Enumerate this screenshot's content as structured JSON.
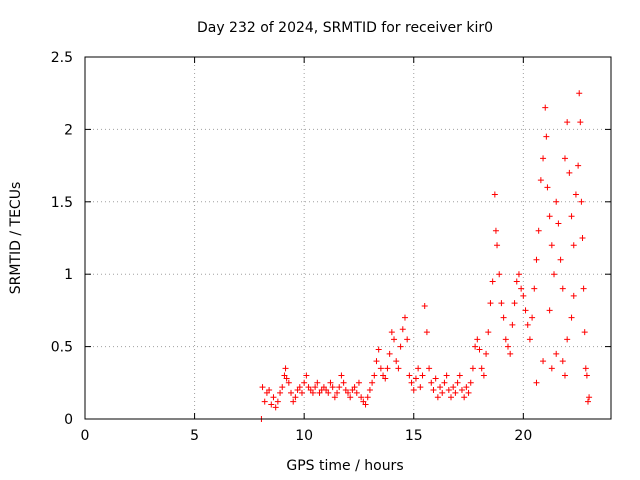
{
  "chart_data": {
    "type": "scatter",
    "title": "Day 232 of 2024, SRMTID for receiver kir0",
    "xlabel": "GPS time / hours",
    "ylabel": "SRMTID / TECUs",
    "xlim": [
      0,
      24
    ],
    "ylim": [
      0,
      2.5
    ],
    "xticks": [
      0,
      5,
      10,
      15,
      20
    ],
    "xtick_labels": [
      "0",
      "5",
      "10",
      "15",
      "20"
    ],
    "yticks": [
      0,
      0.5,
      1,
      1.5,
      2,
      2.5
    ],
    "ytick_labels": [
      "0",
      "0.5",
      "1",
      "1.5",
      "2",
      "2.5"
    ],
    "grid": true,
    "marker": "+",
    "series": [
      {
        "name": "kir0",
        "color": "#ff0000",
        "points": [
          [
            8.05,
            0.0
          ],
          [
            8.1,
            0.22
          ],
          [
            8.2,
            0.12
          ],
          [
            8.3,
            0.18
          ],
          [
            8.4,
            0.2
          ],
          [
            8.5,
            0.1
          ],
          [
            8.6,
            0.15
          ],
          [
            8.7,
            0.08
          ],
          [
            8.8,
            0.12
          ],
          [
            8.9,
            0.18
          ],
          [
            9.0,
            0.22
          ],
          [
            9.1,
            0.3
          ],
          [
            9.15,
            0.35
          ],
          [
            9.2,
            0.28
          ],
          [
            9.3,
            0.25
          ],
          [
            9.4,
            0.18
          ],
          [
            9.5,
            0.12
          ],
          [
            9.6,
            0.15
          ],
          [
            9.7,
            0.2
          ],
          [
            9.8,
            0.22
          ],
          [
            9.9,
            0.18
          ],
          [
            10.0,
            0.25
          ],
          [
            10.1,
            0.3
          ],
          [
            10.2,
            0.22
          ],
          [
            10.3,
            0.2
          ],
          [
            10.4,
            0.18
          ],
          [
            10.5,
            0.22
          ],
          [
            10.6,
            0.25
          ],
          [
            10.7,
            0.18
          ],
          [
            10.8,
            0.2
          ],
          [
            10.9,
            0.22
          ],
          [
            11.0,
            0.2
          ],
          [
            11.1,
            0.18
          ],
          [
            11.2,
            0.25
          ],
          [
            11.3,
            0.22
          ],
          [
            11.4,
            0.15
          ],
          [
            11.5,
            0.18
          ],
          [
            11.6,
            0.22
          ],
          [
            11.7,
            0.3
          ],
          [
            11.8,
            0.25
          ],
          [
            11.9,
            0.2
          ],
          [
            12.0,
            0.18
          ],
          [
            12.1,
            0.15
          ],
          [
            12.2,
            0.2
          ],
          [
            12.3,
            0.22
          ],
          [
            12.4,
            0.18
          ],
          [
            12.5,
            0.25
          ],
          [
            12.6,
            0.15
          ],
          [
            12.7,
            0.12
          ],
          [
            12.8,
            0.1
          ],
          [
            12.9,
            0.15
          ],
          [
            13.0,
            0.2
          ],
          [
            13.1,
            0.25
          ],
          [
            13.2,
            0.3
          ],
          [
            13.3,
            0.4
          ],
          [
            13.4,
            0.48
          ],
          [
            13.5,
            0.35
          ],
          [
            13.6,
            0.3
          ],
          [
            13.7,
            0.28
          ],
          [
            13.8,
            0.35
          ],
          [
            13.9,
            0.45
          ],
          [
            14.0,
            0.6
          ],
          [
            14.1,
            0.55
          ],
          [
            14.2,
            0.4
          ],
          [
            14.3,
            0.35
          ],
          [
            14.4,
            0.5
          ],
          [
            14.5,
            0.62
          ],
          [
            14.6,
            0.7
          ],
          [
            14.7,
            0.55
          ],
          [
            14.8,
            0.3
          ],
          [
            14.9,
            0.25
          ],
          [
            15.0,
            0.2
          ],
          [
            15.1,
            0.28
          ],
          [
            15.2,
            0.35
          ],
          [
            15.3,
            0.22
          ],
          [
            15.4,
            0.3
          ],
          [
            15.5,
            0.78
          ],
          [
            15.6,
            0.6
          ],
          [
            15.7,
            0.35
          ],
          [
            15.8,
            0.25
          ],
          [
            15.9,
            0.2
          ],
          [
            16.0,
            0.28
          ],
          [
            16.1,
            0.15
          ],
          [
            16.2,
            0.22
          ],
          [
            16.3,
            0.18
          ],
          [
            16.4,
            0.25
          ],
          [
            16.5,
            0.3
          ],
          [
            16.6,
            0.2
          ],
          [
            16.7,
            0.15
          ],
          [
            16.8,
            0.22
          ],
          [
            16.9,
            0.18
          ],
          [
            17.0,
            0.25
          ],
          [
            17.1,
            0.3
          ],
          [
            17.2,
            0.2
          ],
          [
            17.3,
            0.15
          ],
          [
            17.4,
            0.22
          ],
          [
            17.5,
            0.18
          ],
          [
            17.6,
            0.25
          ],
          [
            17.7,
            0.35
          ],
          [
            17.8,
            0.5
          ],
          [
            17.9,
            0.55
          ],
          [
            18.0,
            0.48
          ],
          [
            18.1,
            0.35
          ],
          [
            18.2,
            0.3
          ],
          [
            18.3,
            0.45
          ],
          [
            18.4,
            0.6
          ],
          [
            18.5,
            0.8
          ],
          [
            18.6,
            0.95
          ],
          [
            18.7,
            1.55
          ],
          [
            18.75,
            1.3
          ],
          [
            18.8,
            1.2
          ],
          [
            18.9,
            1.0
          ],
          [
            19.0,
            0.8
          ],
          [
            19.1,
            0.7
          ],
          [
            19.2,
            0.55
          ],
          [
            19.3,
            0.5
          ],
          [
            19.4,
            0.45
          ],
          [
            19.5,
            0.65
          ],
          [
            19.6,
            0.8
          ],
          [
            19.7,
            0.95
          ],
          [
            19.8,
            1.0
          ],
          [
            19.9,
            0.9
          ],
          [
            20.0,
            0.85
          ],
          [
            20.1,
            0.75
          ],
          [
            20.2,
            0.65
          ],
          [
            20.3,
            0.55
          ],
          [
            20.4,
            0.7
          ],
          [
            20.5,
            0.9
          ],
          [
            20.6,
            1.1
          ],
          [
            20.7,
            1.3
          ],
          [
            20.8,
            1.65
          ],
          [
            20.9,
            1.8
          ],
          [
            21.0,
            2.15
          ],
          [
            21.05,
            1.95
          ],
          [
            21.1,
            1.6
          ],
          [
            21.2,
            1.4
          ],
          [
            21.3,
            1.2
          ],
          [
            21.4,
            1.0
          ],
          [
            21.5,
            1.5
          ],
          [
            21.6,
            1.35
          ],
          [
            21.7,
            1.1
          ],
          [
            21.8,
            0.9
          ],
          [
            21.9,
            1.8
          ],
          [
            22.0,
            2.05
          ],
          [
            22.1,
            1.7
          ],
          [
            22.2,
            1.4
          ],
          [
            22.3,
            1.2
          ],
          [
            22.4,
            1.55
          ],
          [
            22.5,
            1.75
          ],
          [
            22.55,
            2.25
          ],
          [
            22.6,
            2.05
          ],
          [
            22.65,
            1.5
          ],
          [
            22.7,
            1.25
          ],
          [
            22.75,
            0.9
          ],
          [
            22.8,
            0.6
          ],
          [
            22.85,
            0.35
          ],
          [
            22.9,
            0.3
          ],
          [
            22.95,
            0.12
          ],
          [
            23.0,
            0.15
          ],
          [
            21.3,
            0.35
          ],
          [
            21.5,
            0.45
          ],
          [
            21.8,
            0.4
          ],
          [
            22.0,
            0.55
          ],
          [
            21.2,
            0.75
          ],
          [
            20.9,
            0.4
          ],
          [
            20.6,
            0.25
          ],
          [
            22.3,
            0.85
          ],
          [
            22.2,
            0.7
          ],
          [
            21.9,
            0.3
          ]
        ]
      }
    ]
  }
}
